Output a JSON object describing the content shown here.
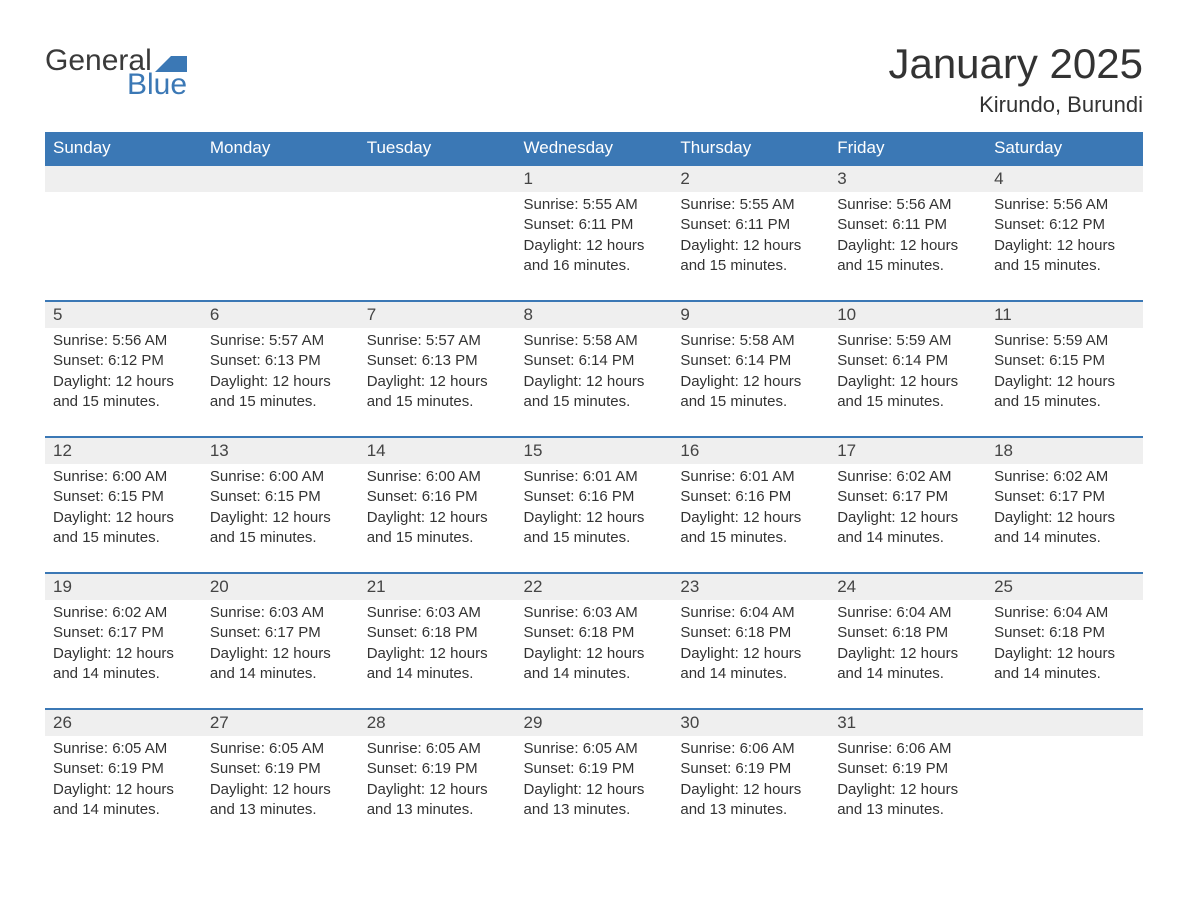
{
  "logo": {
    "general": "General",
    "blue": "Blue"
  },
  "title": "January 2025",
  "location": "Kirundo, Burundi",
  "colors": {
    "accent": "#3b78b5",
    "header_row_bg": "#3b78b5",
    "header_row_text": "#ffffff",
    "daynum_bg": "#efefef",
    "text": "#333333",
    "background": "#ffffff"
  },
  "weekdays": [
    "Sunday",
    "Monday",
    "Tuesday",
    "Wednesday",
    "Thursday",
    "Friday",
    "Saturday"
  ],
  "weeks": [
    [
      null,
      null,
      null,
      {
        "n": "1",
        "sunrise": "Sunrise: 5:55 AM",
        "sunset": "Sunset: 6:11 PM",
        "dl1": "Daylight: 12 hours",
        "dl2": "and 16 minutes."
      },
      {
        "n": "2",
        "sunrise": "Sunrise: 5:55 AM",
        "sunset": "Sunset: 6:11 PM",
        "dl1": "Daylight: 12 hours",
        "dl2": "and 15 minutes."
      },
      {
        "n": "3",
        "sunrise": "Sunrise: 5:56 AM",
        "sunset": "Sunset: 6:11 PM",
        "dl1": "Daylight: 12 hours",
        "dl2": "and 15 minutes."
      },
      {
        "n": "4",
        "sunrise": "Sunrise: 5:56 AM",
        "sunset": "Sunset: 6:12 PM",
        "dl1": "Daylight: 12 hours",
        "dl2": "and 15 minutes."
      }
    ],
    [
      {
        "n": "5",
        "sunrise": "Sunrise: 5:56 AM",
        "sunset": "Sunset: 6:12 PM",
        "dl1": "Daylight: 12 hours",
        "dl2": "and 15 minutes."
      },
      {
        "n": "6",
        "sunrise": "Sunrise: 5:57 AM",
        "sunset": "Sunset: 6:13 PM",
        "dl1": "Daylight: 12 hours",
        "dl2": "and 15 minutes."
      },
      {
        "n": "7",
        "sunrise": "Sunrise: 5:57 AM",
        "sunset": "Sunset: 6:13 PM",
        "dl1": "Daylight: 12 hours",
        "dl2": "and 15 minutes."
      },
      {
        "n": "8",
        "sunrise": "Sunrise: 5:58 AM",
        "sunset": "Sunset: 6:14 PM",
        "dl1": "Daylight: 12 hours",
        "dl2": "and 15 minutes."
      },
      {
        "n": "9",
        "sunrise": "Sunrise: 5:58 AM",
        "sunset": "Sunset: 6:14 PM",
        "dl1": "Daylight: 12 hours",
        "dl2": "and 15 minutes."
      },
      {
        "n": "10",
        "sunrise": "Sunrise: 5:59 AM",
        "sunset": "Sunset: 6:14 PM",
        "dl1": "Daylight: 12 hours",
        "dl2": "and 15 minutes."
      },
      {
        "n": "11",
        "sunrise": "Sunrise: 5:59 AM",
        "sunset": "Sunset: 6:15 PM",
        "dl1": "Daylight: 12 hours",
        "dl2": "and 15 minutes."
      }
    ],
    [
      {
        "n": "12",
        "sunrise": "Sunrise: 6:00 AM",
        "sunset": "Sunset: 6:15 PM",
        "dl1": "Daylight: 12 hours",
        "dl2": "and 15 minutes."
      },
      {
        "n": "13",
        "sunrise": "Sunrise: 6:00 AM",
        "sunset": "Sunset: 6:15 PM",
        "dl1": "Daylight: 12 hours",
        "dl2": "and 15 minutes."
      },
      {
        "n": "14",
        "sunrise": "Sunrise: 6:00 AM",
        "sunset": "Sunset: 6:16 PM",
        "dl1": "Daylight: 12 hours",
        "dl2": "and 15 minutes."
      },
      {
        "n": "15",
        "sunrise": "Sunrise: 6:01 AM",
        "sunset": "Sunset: 6:16 PM",
        "dl1": "Daylight: 12 hours",
        "dl2": "and 15 minutes."
      },
      {
        "n": "16",
        "sunrise": "Sunrise: 6:01 AM",
        "sunset": "Sunset: 6:16 PM",
        "dl1": "Daylight: 12 hours",
        "dl2": "and 15 minutes."
      },
      {
        "n": "17",
        "sunrise": "Sunrise: 6:02 AM",
        "sunset": "Sunset: 6:17 PM",
        "dl1": "Daylight: 12 hours",
        "dl2": "and 14 minutes."
      },
      {
        "n": "18",
        "sunrise": "Sunrise: 6:02 AM",
        "sunset": "Sunset: 6:17 PM",
        "dl1": "Daylight: 12 hours",
        "dl2": "and 14 minutes."
      }
    ],
    [
      {
        "n": "19",
        "sunrise": "Sunrise: 6:02 AM",
        "sunset": "Sunset: 6:17 PM",
        "dl1": "Daylight: 12 hours",
        "dl2": "and 14 minutes."
      },
      {
        "n": "20",
        "sunrise": "Sunrise: 6:03 AM",
        "sunset": "Sunset: 6:17 PM",
        "dl1": "Daylight: 12 hours",
        "dl2": "and 14 minutes."
      },
      {
        "n": "21",
        "sunrise": "Sunrise: 6:03 AM",
        "sunset": "Sunset: 6:18 PM",
        "dl1": "Daylight: 12 hours",
        "dl2": "and 14 minutes."
      },
      {
        "n": "22",
        "sunrise": "Sunrise: 6:03 AM",
        "sunset": "Sunset: 6:18 PM",
        "dl1": "Daylight: 12 hours",
        "dl2": "and 14 minutes."
      },
      {
        "n": "23",
        "sunrise": "Sunrise: 6:04 AM",
        "sunset": "Sunset: 6:18 PM",
        "dl1": "Daylight: 12 hours",
        "dl2": "and 14 minutes."
      },
      {
        "n": "24",
        "sunrise": "Sunrise: 6:04 AM",
        "sunset": "Sunset: 6:18 PM",
        "dl1": "Daylight: 12 hours",
        "dl2": "and 14 minutes."
      },
      {
        "n": "25",
        "sunrise": "Sunrise: 6:04 AM",
        "sunset": "Sunset: 6:18 PM",
        "dl1": "Daylight: 12 hours",
        "dl2": "and 14 minutes."
      }
    ],
    [
      {
        "n": "26",
        "sunrise": "Sunrise: 6:05 AM",
        "sunset": "Sunset: 6:19 PM",
        "dl1": "Daylight: 12 hours",
        "dl2": "and 14 minutes."
      },
      {
        "n": "27",
        "sunrise": "Sunrise: 6:05 AM",
        "sunset": "Sunset: 6:19 PM",
        "dl1": "Daylight: 12 hours",
        "dl2": "and 13 minutes."
      },
      {
        "n": "28",
        "sunrise": "Sunrise: 6:05 AM",
        "sunset": "Sunset: 6:19 PM",
        "dl1": "Daylight: 12 hours",
        "dl2": "and 13 minutes."
      },
      {
        "n": "29",
        "sunrise": "Sunrise: 6:05 AM",
        "sunset": "Sunset: 6:19 PM",
        "dl1": "Daylight: 12 hours",
        "dl2": "and 13 minutes."
      },
      {
        "n": "30",
        "sunrise": "Sunrise: 6:06 AM",
        "sunset": "Sunset: 6:19 PM",
        "dl1": "Daylight: 12 hours",
        "dl2": "and 13 minutes."
      },
      {
        "n": "31",
        "sunrise": "Sunrise: 6:06 AM",
        "sunset": "Sunset: 6:19 PM",
        "dl1": "Daylight: 12 hours",
        "dl2": "and 13 minutes."
      },
      null
    ]
  ]
}
